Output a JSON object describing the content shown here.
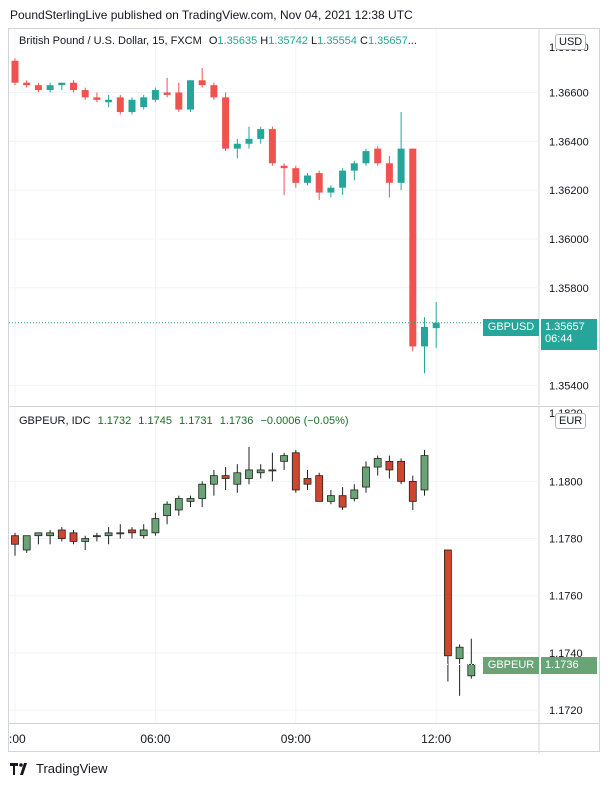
{
  "header": {
    "text": "PoundSterlingLive published on TradingView.com, Nov 04, 2021 12:38 UTC"
  },
  "footer": {
    "brand": "TradingView"
  },
  "colors": {
    "up": "#26a69a",
    "down": "#ef5350",
    "up2": "#6aa375",
    "down2": "#d0452f",
    "grid": "#f0f3fa"
  },
  "pane1": {
    "legend": {
      "title": "British Pound / U.S. Dollar, 15, FXCM",
      "o_label": "O",
      "o": "1.35635",
      "h_label": "H",
      "h": "1.35742",
      "l_label": "L",
      "l": "1.35554",
      "c_label": "C",
      "c": "1.35657",
      "ellipsis": "..."
    },
    "currency": "USD",
    "price_label": {
      "symbol": "GBPUSD",
      "price": "1.35657",
      "countdown": "06:44"
    },
    "top_clipped_tick": "1.36800"
  },
  "pane2": {
    "legend": {
      "title": "GBPEUR, IDC",
      "o": "1.1732",
      "h": "1.1745",
      "l": "1.1731",
      "c": "1.1736",
      "change": "−0.0006 (−0.05%)"
    },
    "currency": "EUR",
    "price_label": {
      "symbol": "GBPEUR",
      "price": "1.1736"
    },
    "top_clipped_tick": "1.1820"
  },
  "chart_data": [
    {
      "type": "candlestick",
      "title": "British Pound / U.S. Dollar, 15, FXCM",
      "ylim": [
        1.3532,
        1.3686
      ],
      "yticks": [
        "1.36600",
        "1.36400",
        "1.36200",
        "1.36000",
        "1.35800",
        "1.35400"
      ],
      "ytick_values": [
        1.366,
        1.364,
        1.362,
        1.36,
        1.358,
        1.354
      ],
      "current": 1.35657,
      "candles": [
        {
          "t": 0,
          "o": 1.3673,
          "h": 1.3674,
          "l": 1.3663,
          "c": 1.3664
        },
        {
          "t": 1,
          "o": 1.3664,
          "h": 1.3665,
          "l": 1.3662,
          "c": 1.3663
        },
        {
          "t": 2,
          "o": 1.3663,
          "h": 1.3664,
          "l": 1.366,
          "c": 1.3661
        },
        {
          "t": 3,
          "o": 1.3661,
          "h": 1.3664,
          "l": 1.366,
          "c": 1.3663
        },
        {
          "t": 4,
          "o": 1.3663,
          "h": 1.3664,
          "l": 1.3661,
          "c": 1.3664
        },
        {
          "t": 5,
          "o": 1.3664,
          "h": 1.3665,
          "l": 1.366,
          "c": 1.3661
        },
        {
          "t": 6,
          "o": 1.3661,
          "h": 1.3662,
          "l": 1.3657,
          "c": 1.3658
        },
        {
          "t": 7,
          "o": 1.3658,
          "h": 1.366,
          "l": 1.3656,
          "c": 1.3657
        },
        {
          "t": 8,
          "o": 1.3656,
          "h": 1.3659,
          "l": 1.3654,
          "c": 1.3657
        },
        {
          "t": 9,
          "o": 1.3658,
          "h": 1.3659,
          "l": 1.3651,
          "c": 1.3652
        },
        {
          "t": 10,
          "o": 1.3652,
          "h": 1.3658,
          "l": 1.3651,
          "c": 1.3657
        },
        {
          "t": 11,
          "o": 1.3654,
          "h": 1.3659,
          "l": 1.3653,
          "c": 1.3658
        },
        {
          "t": 12,
          "o": 1.3657,
          "h": 1.3662,
          "l": 1.3656,
          "c": 1.3661
        },
        {
          "t": 13,
          "o": 1.366,
          "h": 1.3666,
          "l": 1.3658,
          "c": 1.3659
        },
        {
          "t": 14,
          "o": 1.366,
          "h": 1.3664,
          "l": 1.3652,
          "c": 1.3653
        },
        {
          "t": 15,
          "o": 1.3653,
          "h": 1.3665,
          "l": 1.3652,
          "c": 1.3665
        },
        {
          "t": 16,
          "o": 1.3665,
          "h": 1.367,
          "l": 1.3662,
          "c": 1.3663
        },
        {
          "t": 17,
          "o": 1.3663,
          "h": 1.3664,
          "l": 1.3657,
          "c": 1.3658
        },
        {
          "t": 18,
          "o": 1.3658,
          "h": 1.366,
          "l": 1.3636,
          "c": 1.3637
        },
        {
          "t": 19,
          "o": 1.3637,
          "h": 1.3641,
          "l": 1.3633,
          "c": 1.3639
        },
        {
          "t": 20,
          "o": 1.3639,
          "h": 1.3646,
          "l": 1.3637,
          "c": 1.3641
        },
        {
          "t": 21,
          "o": 1.3641,
          "h": 1.3646,
          "l": 1.3639,
          "c": 1.3645
        },
        {
          "t": 22,
          "o": 1.3645,
          "h": 1.3646,
          "l": 1.363,
          "c": 1.3631
        },
        {
          "t": 23,
          "o": 1.363,
          "h": 1.3631,
          "l": 1.3618,
          "c": 1.3629
        },
        {
          "t": 24,
          "o": 1.3629,
          "h": 1.363,
          "l": 1.3621,
          "c": 1.3623
        },
        {
          "t": 25,
          "o": 1.3623,
          "h": 1.3627,
          "l": 1.3622,
          "c": 1.3626
        },
        {
          "t": 26,
          "o": 1.3627,
          "h": 1.3628,
          "l": 1.3616,
          "c": 1.3619
        },
        {
          "t": 27,
          "o": 1.3619,
          "h": 1.3622,
          "l": 1.3617,
          "c": 1.3621
        },
        {
          "t": 28,
          "o": 1.3621,
          "h": 1.3629,
          "l": 1.3618,
          "c": 1.3628
        },
        {
          "t": 29,
          "o": 1.3628,
          "h": 1.3632,
          "l": 1.3624,
          "c": 1.3631
        },
        {
          "t": 30,
          "o": 1.3631,
          "h": 1.3637,
          "l": 1.363,
          "c": 1.3636
        },
        {
          "t": 31,
          "o": 1.3637,
          "h": 1.3638,
          "l": 1.363,
          "c": 1.3631
        },
        {
          "t": 32,
          "o": 1.3631,
          "h": 1.3634,
          "l": 1.3617,
          "c": 1.3623
        },
        {
          "t": 33,
          "o": 1.3623,
          "h": 1.3652,
          "l": 1.362,
          "c": 1.3637
        },
        {
          "t": 34,
          "o": 1.3637,
          "h": 1.3637,
          "l": 1.3554,
          "c": 1.3556
        },
        {
          "t": 35,
          "o": 1.3556,
          "h": 1.3568,
          "l": 1.3545,
          "c": 1.3564
        },
        {
          "t": 36,
          "o": 1.35635,
          "h": 1.35742,
          "l": 1.35554,
          "c": 1.35657
        }
      ]
    },
    {
      "type": "candlestick",
      "title": "GBPEUR, IDC",
      "ylim": [
        1.17155,
        1.1826
      ],
      "yticks": [
        "1.1800",
        "1.1780",
        "1.1760",
        "1.1740",
        "1.1720"
      ],
      "ytick_values": [
        1.18,
        1.178,
        1.176,
        1.174,
        1.172
      ],
      "current": 1.1736,
      "candles": [
        {
          "t": 0,
          "o": 1.1781,
          "h": 1.1782,
          "l": 1.1774,
          "c": 1.1778
        },
        {
          "t": 1,
          "o": 1.1776,
          "h": 1.1781,
          "l": 1.1775,
          "c": 1.1781
        },
        {
          "t": 2,
          "o": 1.1781,
          "h": 1.1782,
          "l": 1.1778,
          "c": 1.1782
        },
        {
          "t": 3,
          "o": 1.1781,
          "h": 1.1783,
          "l": 1.1778,
          "c": 1.1782
        },
        {
          "t": 4,
          "o": 1.1783,
          "h": 1.1784,
          "l": 1.1779,
          "c": 1.178
        },
        {
          "t": 5,
          "o": 1.1782,
          "h": 1.1783,
          "l": 1.1778,
          "c": 1.1779
        },
        {
          "t": 6,
          "o": 1.1779,
          "h": 1.1781,
          "l": 1.1776,
          "c": 1.178
        },
        {
          "t": 7,
          "o": 1.1781,
          "h": 1.1782,
          "l": 1.1779,
          "c": 1.1781
        },
        {
          "t": 8,
          "o": 1.1781,
          "h": 1.1784,
          "l": 1.1778,
          "c": 1.1782
        },
        {
          "t": 9,
          "o": 1.1782,
          "h": 1.1785,
          "l": 1.178,
          "c": 1.1782
        },
        {
          "t": 10,
          "o": 1.1783,
          "h": 1.1784,
          "l": 1.178,
          "c": 1.1782
        },
        {
          "t": 11,
          "o": 1.1781,
          "h": 1.1785,
          "l": 1.178,
          "c": 1.1783
        },
        {
          "t": 12,
          "o": 1.1782,
          "h": 1.1789,
          "l": 1.1781,
          "c": 1.1787
        },
        {
          "t": 13,
          "o": 1.1788,
          "h": 1.1793,
          "l": 1.1785,
          "c": 1.1792
        },
        {
          "t": 14,
          "o": 1.179,
          "h": 1.1795,
          "l": 1.1788,
          "c": 1.1794
        },
        {
          "t": 15,
          "o": 1.1793,
          "h": 1.1795,
          "l": 1.1791,
          "c": 1.1794
        },
        {
          "t": 16,
          "o": 1.1794,
          "h": 1.18,
          "l": 1.1791,
          "c": 1.1799
        },
        {
          "t": 17,
          "o": 1.1799,
          "h": 1.1804,
          "l": 1.1795,
          "c": 1.1802
        },
        {
          "t": 18,
          "o": 1.1802,
          "h": 1.1805,
          "l": 1.1797,
          "c": 1.1801
        },
        {
          "t": 19,
          "o": 1.1799,
          "h": 1.1806,
          "l": 1.1796,
          "c": 1.1803
        },
        {
          "t": 20,
          "o": 1.1801,
          "h": 1.1812,
          "l": 1.1799,
          "c": 1.1804
        },
        {
          "t": 21,
          "o": 1.1803,
          "h": 1.1806,
          "l": 1.1801,
          "c": 1.1804
        },
        {
          "t": 22,
          "o": 1.1804,
          "h": 1.181,
          "l": 1.18,
          "c": 1.1804
        },
        {
          "t": 23,
          "o": 1.1807,
          "h": 1.181,
          "l": 1.1804,
          "c": 1.1809
        },
        {
          "t": 24,
          "o": 1.181,
          "h": 1.1811,
          "l": 1.1796,
          "c": 1.1797
        },
        {
          "t": 25,
          "o": 1.1801,
          "h": 1.1804,
          "l": 1.1797,
          "c": 1.1799
        },
        {
          "t": 26,
          "o": 1.1802,
          "h": 1.1803,
          "l": 1.1793,
          "c": 1.1793
        },
        {
          "t": 27,
          "o": 1.1793,
          "h": 1.1797,
          "l": 1.1792,
          "c": 1.1795
        },
        {
          "t": 28,
          "o": 1.1795,
          "h": 1.1798,
          "l": 1.179,
          "c": 1.1791
        },
        {
          "t": 29,
          "o": 1.1794,
          "h": 1.1799,
          "l": 1.1793,
          "c": 1.1797
        },
        {
          "t": 30,
          "o": 1.1798,
          "h": 1.1807,
          "l": 1.1796,
          "c": 1.1805
        },
        {
          "t": 31,
          "o": 1.1805,
          "h": 1.1809,
          "l": 1.1802,
          "c": 1.1808
        },
        {
          "t": 32,
          "o": 1.1807,
          "h": 1.1809,
          "l": 1.1801,
          "c": 1.1804
        },
        {
          "t": 33,
          "o": 1.1807,
          "h": 1.1808,
          "l": 1.1799,
          "c": 1.18
        },
        {
          "t": 34,
          "o": 1.18,
          "h": 1.1802,
          "l": 1.179,
          "c": 1.1793
        },
        {
          "t": 35,
          "o": 1.1797,
          "h": 1.1811,
          "l": 1.1795,
          "c": 1.1809
        },
        {
          "t": 37,
          "o": 1.1776,
          "h": 1.1776,
          "l": 1.173,
          "c": 1.1739
        },
        {
          "t": 38,
          "o": 1.1738,
          "h": 1.1743,
          "l": 1.1725,
          "c": 1.1742
        },
        {
          "t": 39,
          "o": 1.1732,
          "h": 1.1745,
          "l": 1.1731,
          "c": 1.1736
        }
      ]
    }
  ],
  "xaxis": {
    "ticks": [
      ":00",
      "06:00",
      "09:00",
      "12:00"
    ],
    "tick_index": [
      0,
      12,
      24,
      36
    ]
  }
}
